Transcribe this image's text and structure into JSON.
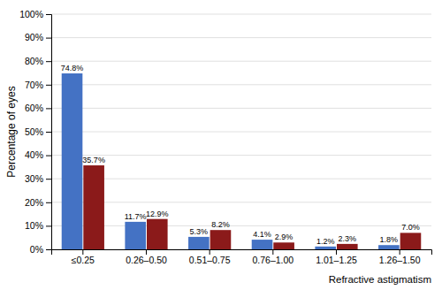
{
  "chart_data": {
    "type": "bar",
    "categories": [
      "≤0.25",
      "0.26–0.50",
      "0.51–0.75",
      "0.76–1.00",
      "1.01–1.25",
      "1.26–1.50"
    ],
    "series": [
      {
        "color": "#4472C4",
        "values": [
          74.8,
          11.7,
          5.3,
          4.1,
          1.2,
          1.8
        ],
        "value_labels": [
          "74.8%",
          "11.7%",
          "5.3%",
          "4.1%",
          "1.2%",
          "1.8%"
        ]
      },
      {
        "color": "#8B1A1A",
        "values": [
          35.7,
          12.9,
          8.2,
          2.9,
          2.3,
          7.0
        ],
        "value_labels": [
          "35.7%",
          "12.9%",
          "8.2%",
          "2.9%",
          "2.3%",
          "7.0%"
        ]
      }
    ],
    "ylabel": "Percentage of eyes",
    "xlabel": "Refractive astigmatism",
    "ylim": [
      0,
      100
    ],
    "yticks": [
      {
        "value": 0,
        "label": "0%"
      },
      {
        "value": 10,
        "label": "10%"
      },
      {
        "value": 20,
        "label": "20%"
      },
      {
        "value": 30,
        "label": "30%"
      },
      {
        "value": 40,
        "label": "40%"
      },
      {
        "value": 50,
        "label": "50%"
      },
      {
        "value": 60,
        "label": "60%"
      },
      {
        "value": 70,
        "label": "70%"
      },
      {
        "value": 80,
        "label": "80%"
      },
      {
        "value": 90,
        "label": "90%"
      },
      {
        "value": 100,
        "label": "100%"
      }
    ],
    "grid": true,
    "data_labels": true
  }
}
